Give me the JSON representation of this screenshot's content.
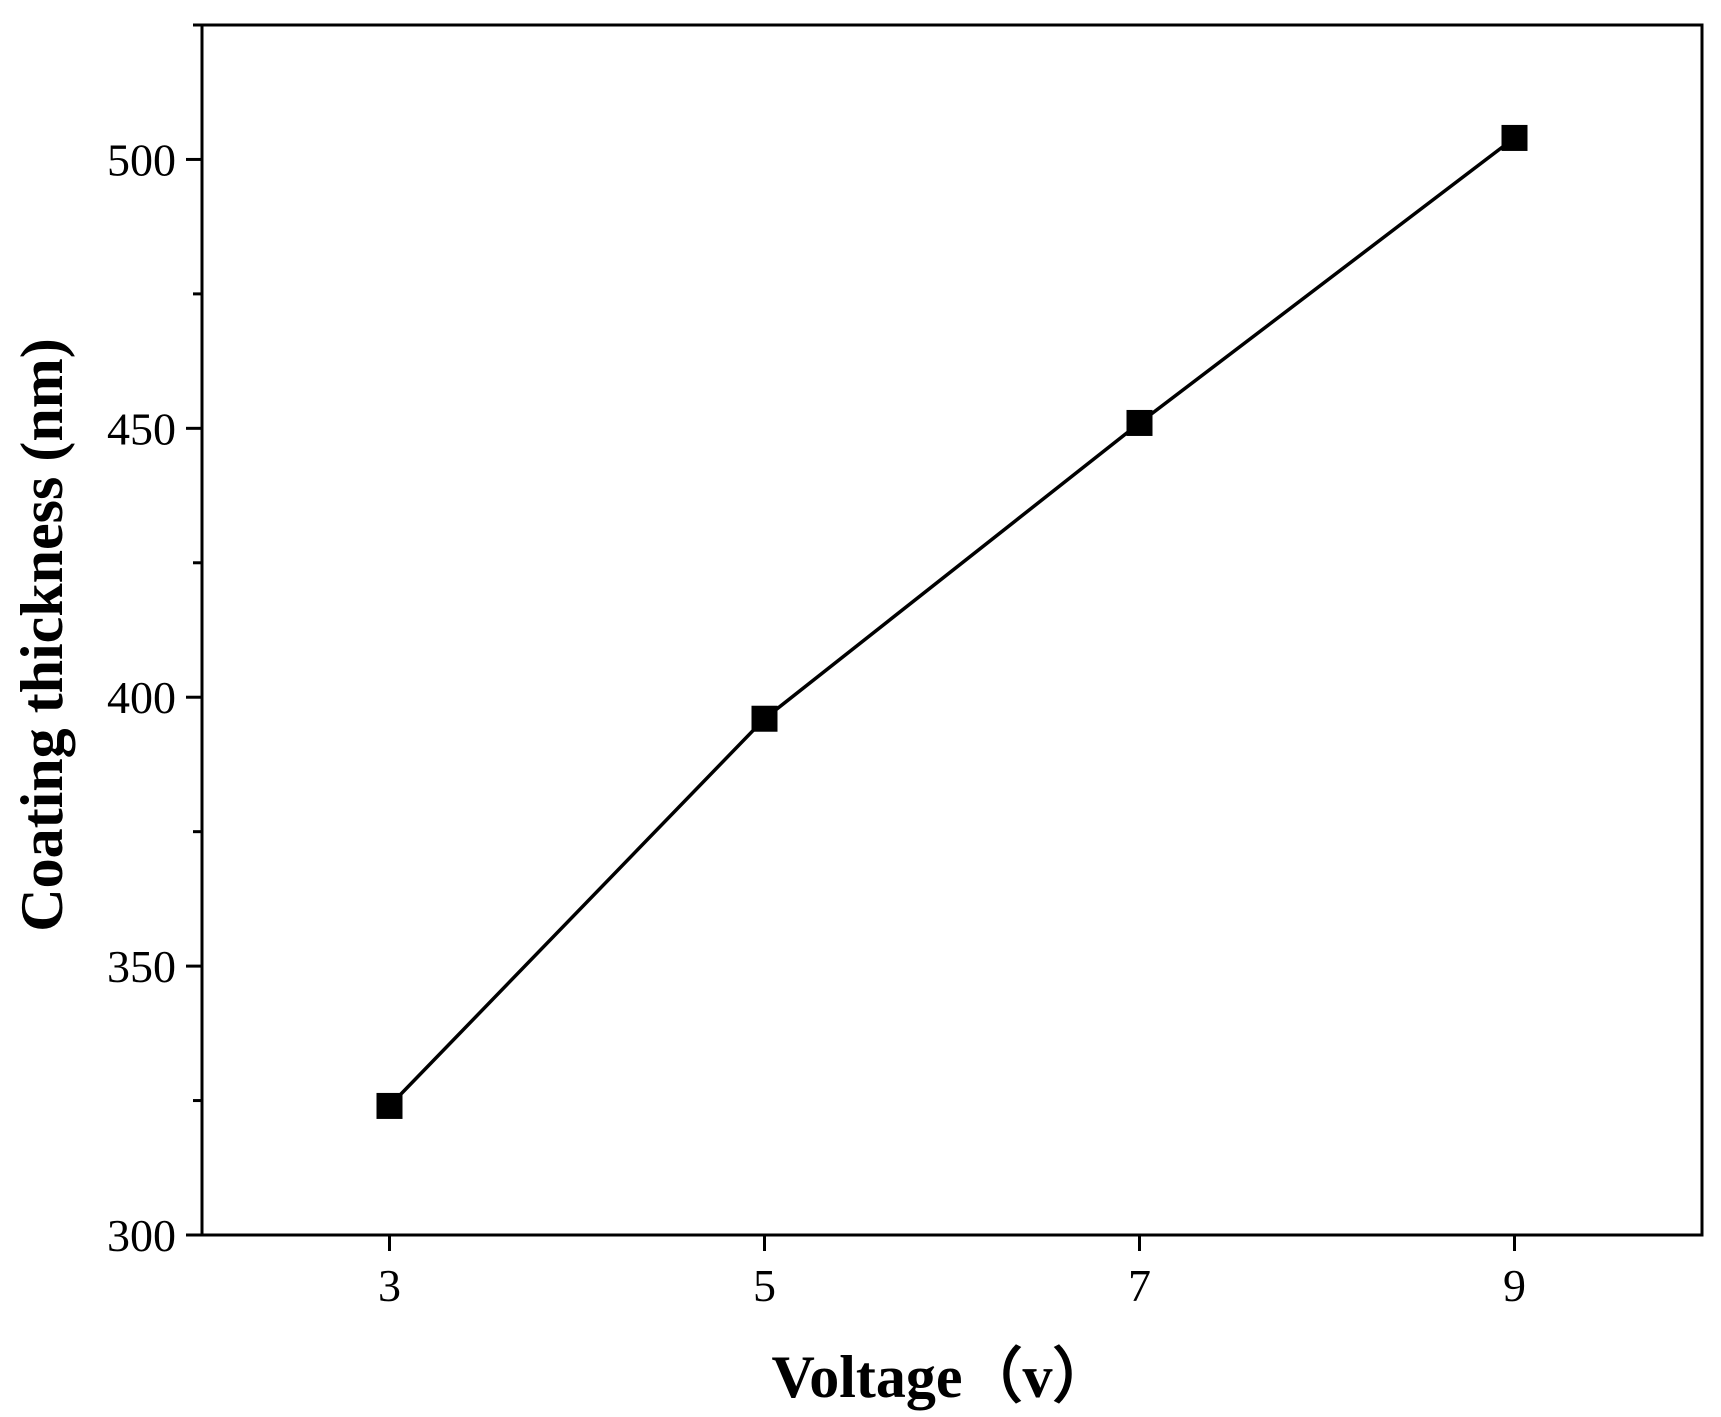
{
  "chart_data": {
    "type": "line",
    "xlabel": "Voltage（v）",
    "ylabel": "Coating thickness (nm)",
    "xlim": [
      2,
      10
    ],
    "ylim": [
      300,
      525
    ],
    "x_ticks": [
      3,
      5,
      7,
      9
    ],
    "x_tick_labels": [
      "3",
      "5",
      "7",
      "9"
    ],
    "y_ticks": [
      300,
      350,
      400,
      450,
      500
    ],
    "y_tick_labels": [
      "300",
      "350",
      "400",
      "450",
      "500"
    ],
    "y_minor_ticks": [
      325,
      375,
      425,
      475,
      525
    ],
    "grid": false,
    "series": [
      {
        "marker": "square",
        "color": "#000000",
        "x": [
          3,
          5,
          7,
          9
        ],
        "y": [
          324,
          396,
          451,
          504
        ]
      }
    ]
  }
}
